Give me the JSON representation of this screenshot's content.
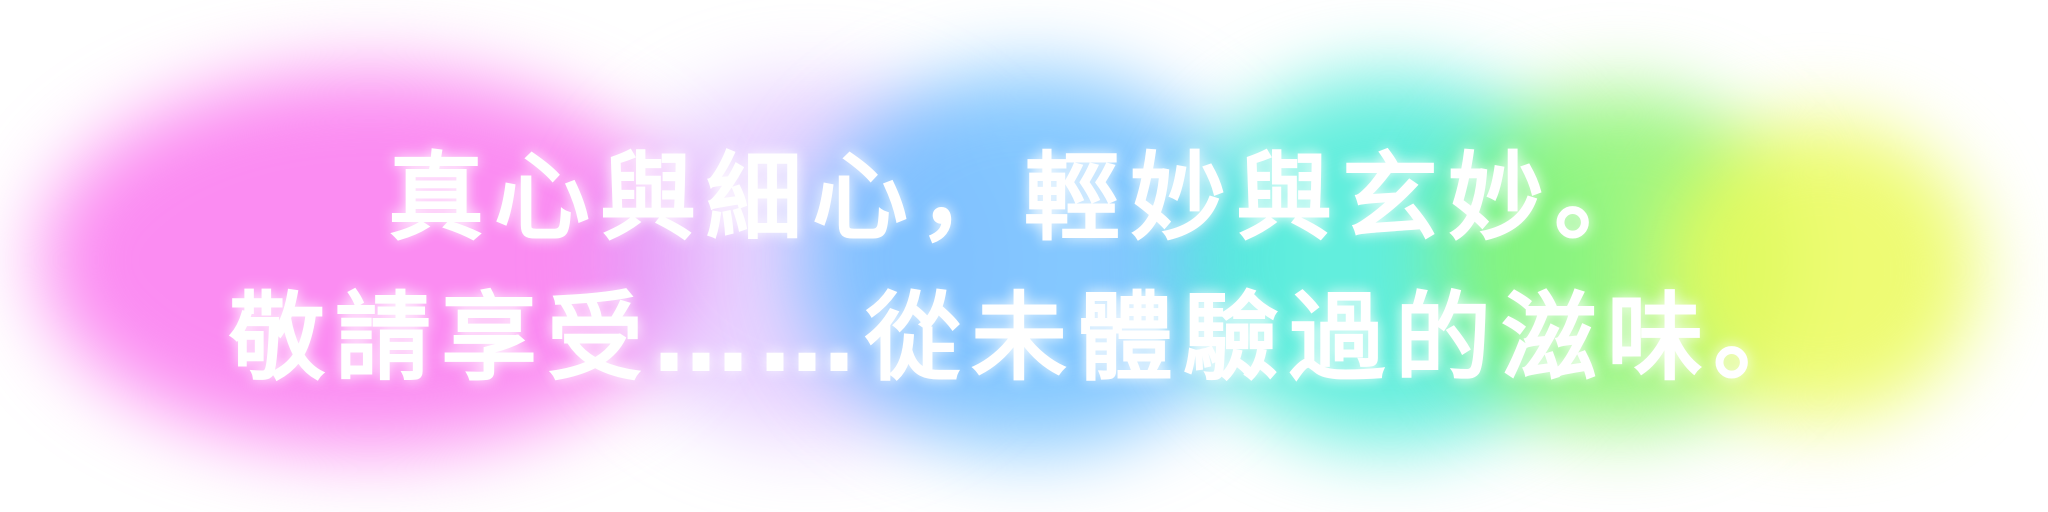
{
  "text": {
    "line1": "真心與細心，輕妙與玄妙。",
    "line2": "敬請享受……從未體驗過的滋味。"
  },
  "colors": {
    "text": "#ffffff",
    "background": "#ffffff",
    "glow_gradient": [
      "#fa78f0",
      "#d7afff",
      "#6ebeff",
      "#46ebd7",
      "#8cf56e",
      "#ebfa5a"
    ]
  }
}
